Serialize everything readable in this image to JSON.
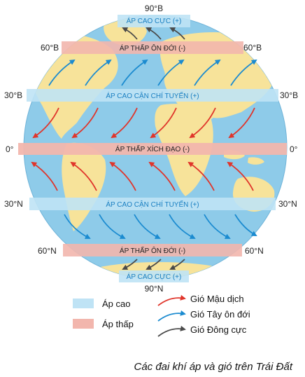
{
  "bands": {
    "polar_high_n": "ÁP CAO CỰC (+)",
    "subpolar_low_n": "ÁP THẤP ÔN ĐỚI (-)",
    "subtropical_high_n": "ÁP CAO CẬN CHÍ TUYẾN (+)",
    "equatorial_low": "ÁP THẤP XÍCH ĐẠO (-)",
    "subtropical_high_s": "ÁP CAO CẬN CHÍ TUYẾN (+)",
    "subpolar_low_s": "ÁP THẤP ÔN ĐỚI (-)",
    "polar_high_s": "ÁP CAO CỰC (+)"
  },
  "latitudes": {
    "n90": "90°B",
    "n60_left": "60°B",
    "n60_right": "60°B",
    "n30_left": "30°B",
    "n30_right": "30°B",
    "eq_left": "0°",
    "eq_right": "0°",
    "s30_left": "30°N",
    "s30_right": "30°N",
    "s60_left": "60°N",
    "s60_right": "60°N",
    "s90": "90°N"
  },
  "legend": {
    "high_pressure": "Áp cao",
    "low_pressure": "Áp thấp",
    "trade_winds": "Gió Mậu dịch",
    "westerlies": "Gió Tây ôn đới",
    "polar_easterlies": "Gió Đông cực"
  },
  "caption": "Các đai khí áp và gió trên Trái Đất",
  "colors": {
    "ocean": "#8ecbe9",
    "land": "#f7e39a",
    "high_band": "#bfe3f5",
    "low_band": "#f2b6ad",
    "trade_arrow": "#e0352b",
    "westerly_arrow": "#1b8bd0",
    "polar_arrow": "#4a4a4a",
    "high_text": "#1a7fc1",
    "low_text": "#222222"
  }
}
